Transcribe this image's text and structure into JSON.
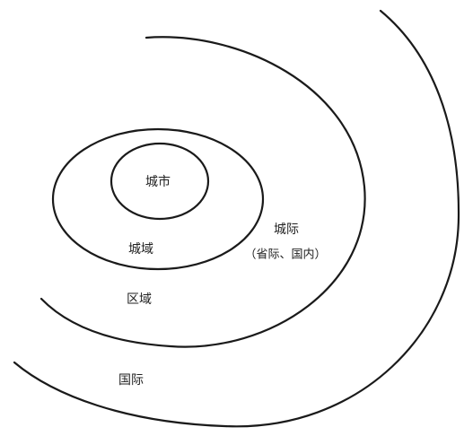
{
  "diagram": {
    "labels": {
      "city": "城市",
      "metro": "城域",
      "intercity": "城际",
      "intercity_note": "（省际、国内）",
      "region": "区域",
      "international": "国际"
    }
  }
}
